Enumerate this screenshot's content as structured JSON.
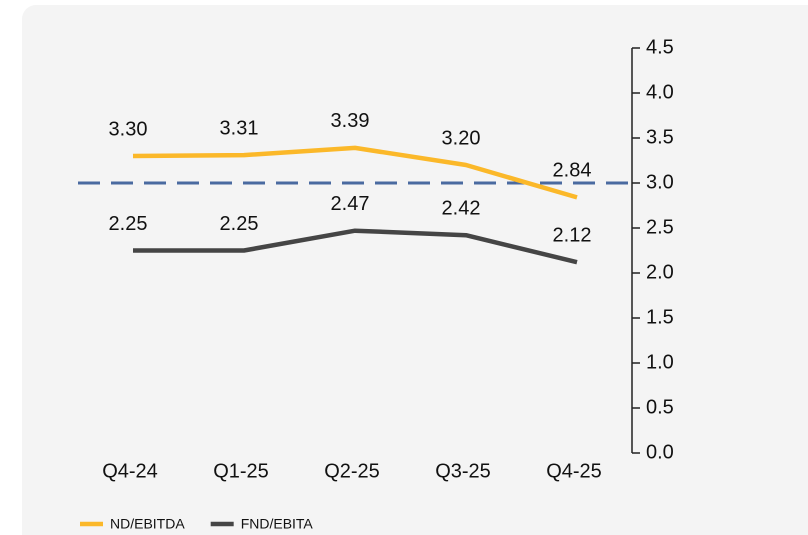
{
  "chart_data": {
    "type": "line",
    "categories": [
      "Q4-24",
      "Q1-25",
      "Q2-25",
      "Q3-25",
      "Q4-25"
    ],
    "series": [
      {
        "name": "ND/EBITDA",
        "color": "#fbb829",
        "values": [
          3.3,
          3.31,
          3.39,
          3.2,
          2.84
        ],
        "value_labels": [
          "3.30",
          "3.31",
          "3.39",
          "3.20",
          "2.84"
        ]
      },
      {
        "name": "FND/EBITA",
        "color": "#454545",
        "values": [
          2.25,
          2.25,
          2.47,
          2.42,
          2.12
        ],
        "value_labels": [
          "2.25",
          "2.25",
          "2.47",
          "2.42",
          "2.12"
        ]
      }
    ],
    "ylim": [
      0,
      4.5
    ],
    "yticks": [
      {
        "value": 0,
        "label": "0.0"
      },
      {
        "value": 0.5,
        "label": "0.5"
      },
      {
        "value": 1,
        "label": "1.0"
      },
      {
        "value": 1.5,
        "label": "1.5"
      },
      {
        "value": 2,
        "label": "2.0"
      },
      {
        "value": 2.5,
        "label": "2.5"
      },
      {
        "value": 3,
        "label": "3.0"
      },
      {
        "value": 3.5,
        "label": "3.5"
      },
      {
        "value": 4,
        "label": "4.0"
      },
      {
        "value": 4.5,
        "label": "4.5"
      }
    ],
    "y_axis_side": "right",
    "reference_line": {
      "value": 3,
      "color": "#4a6aa0"
    },
    "legend": "bottom-left"
  }
}
